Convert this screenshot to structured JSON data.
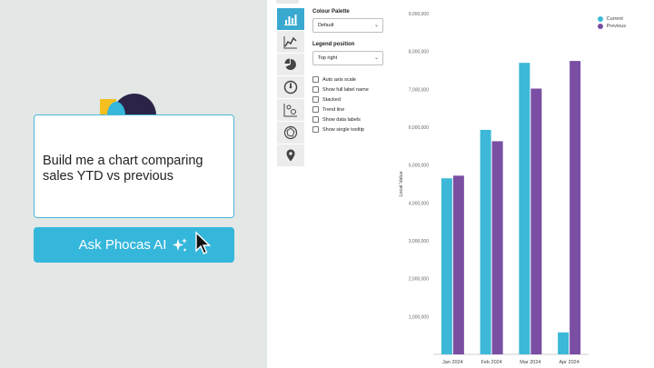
{
  "promo": {
    "prompt_text": "Build me a chart comparing sales YTD vs previous",
    "button_label": "Ask Phocas AI"
  },
  "settings": {
    "colour_palette_title": "Colour Palette",
    "colour_palette_value": "Default",
    "legend_position_title": "Legend position",
    "legend_position_value": "Top right",
    "checkboxes": [
      {
        "label": "Auto axis scale",
        "checked": false
      },
      {
        "label": "Show full label name",
        "checked": false
      },
      {
        "label": "Stacked",
        "checked": false
      },
      {
        "label": "Trend line",
        "checked": false
      },
      {
        "label": "Show data labels",
        "checked": false
      },
      {
        "label": "Show single tooltip",
        "checked": false
      }
    ],
    "chart_type_icons": [
      "bar-chart-icon",
      "line-chart-icon",
      "pie-chart-icon",
      "gauge-icon",
      "scatter-chart-icon",
      "radar-chart-icon",
      "map-pin-icon"
    ]
  },
  "colors": {
    "current": "#3db8d8",
    "previous": "#7a4ea3",
    "accent": "#35b7db"
  },
  "chart_data": {
    "type": "bar",
    "categories": [
      "Jan 2024",
      "Feb 2024",
      "Mar 2024",
      "Apr 2024"
    ],
    "series": [
      {
        "name": "Current",
        "values": [
          4650000,
          5930000,
          7700000,
          580000
        ]
      },
      {
        "name": "Previous",
        "values": [
          4720000,
          5630000,
          7020000,
          7750000
        ]
      }
    ],
    "ylabel": "Local Value",
    "ylim": [
      0,
      9000000
    ],
    "yticks": [
      "1,000,000",
      "2,000,000",
      "3,000,000",
      "4,000,000",
      "5,000,000",
      "6,000,000",
      "7,000,000",
      "8,000,000",
      "9,000,000"
    ],
    "legend_position": "top-right",
    "grid": false
  }
}
